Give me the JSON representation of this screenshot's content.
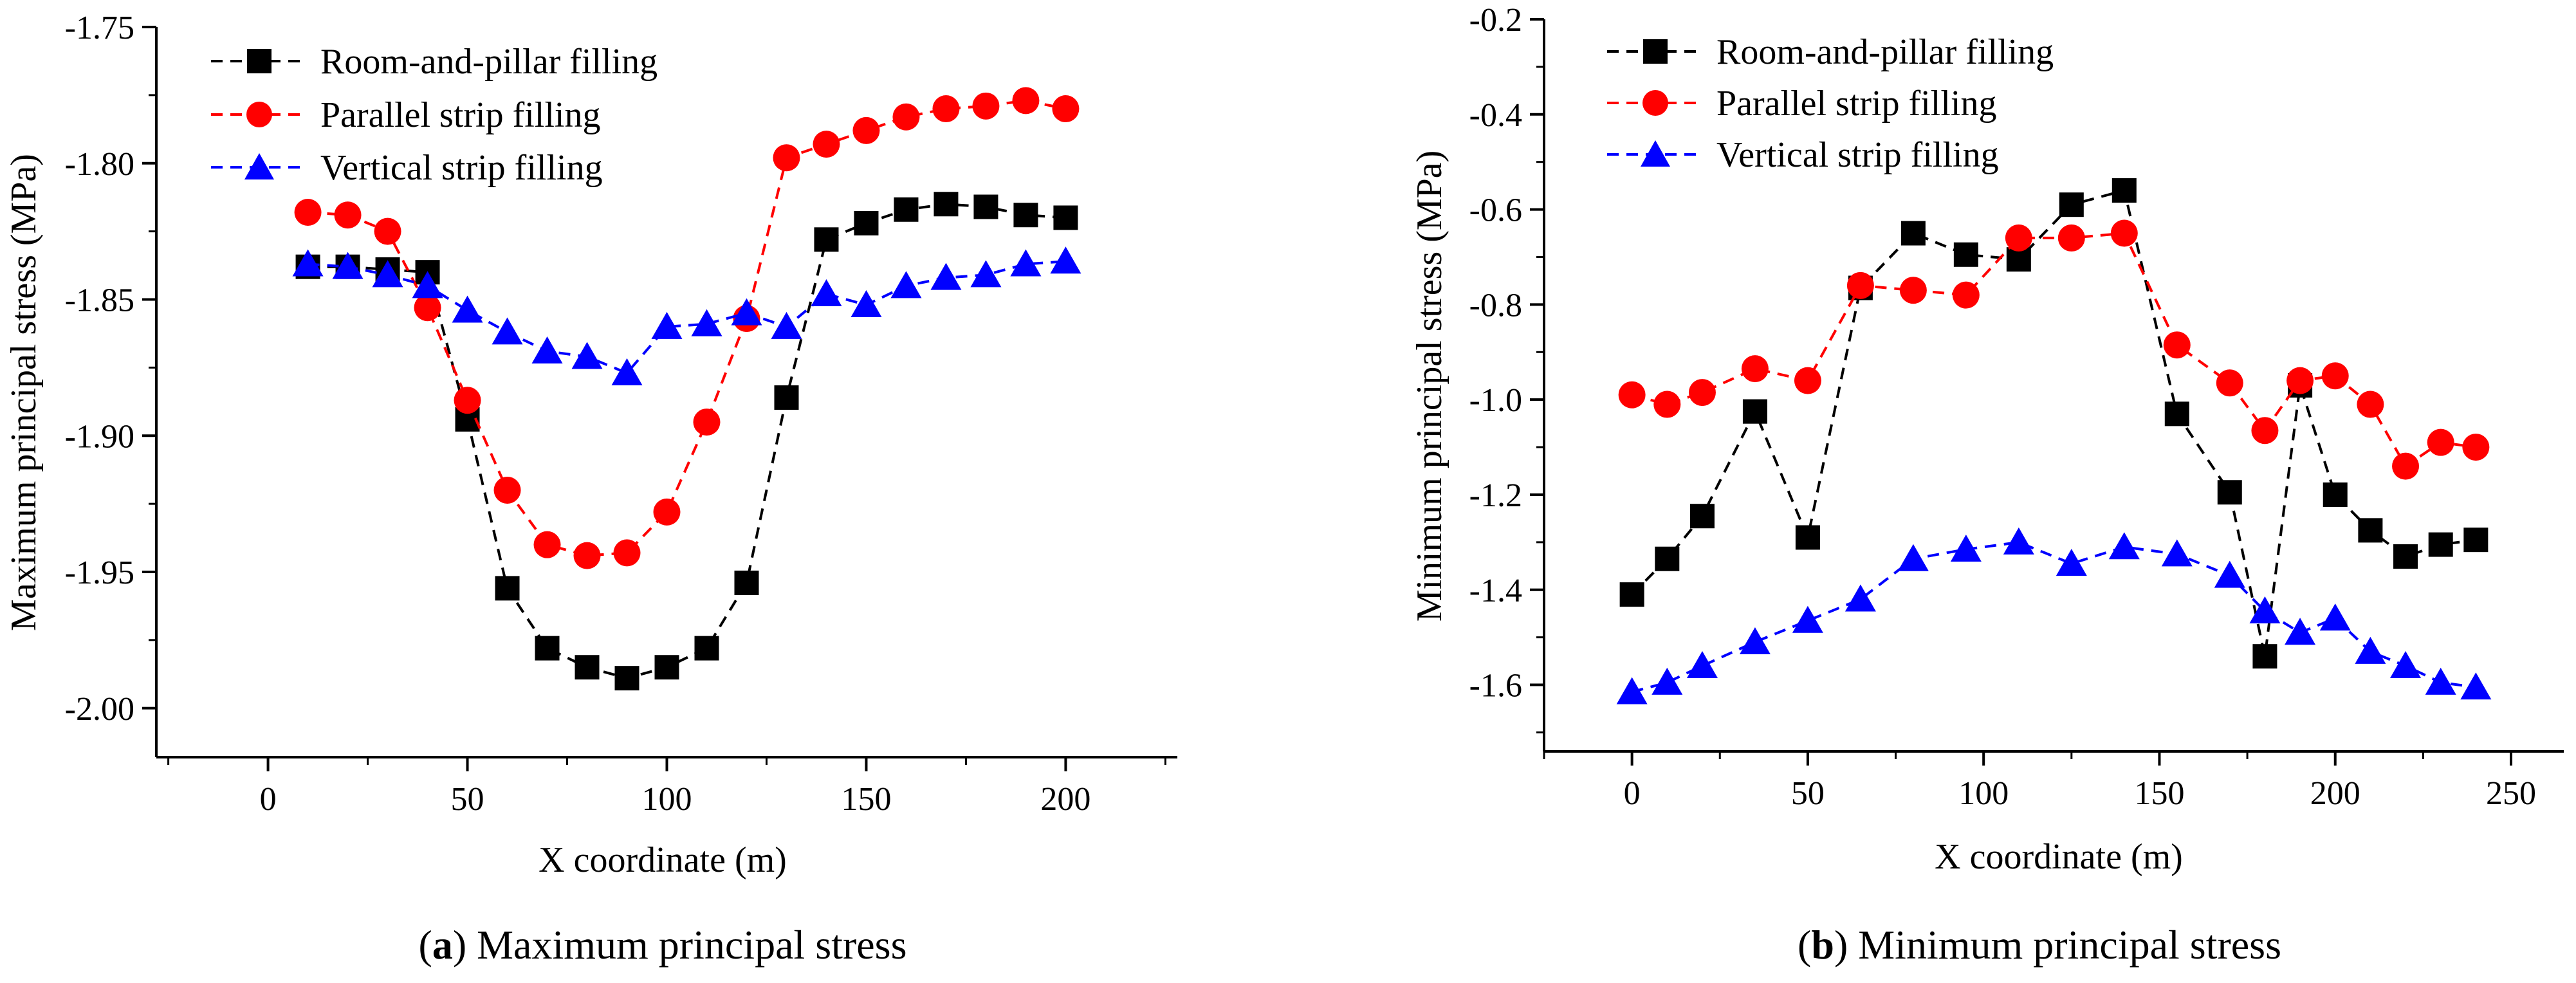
{
  "chart_data": [
    {
      "type": "line",
      "id": "a",
      "xlabel": "X coordinate (m)",
      "ylabel": "Maximum principal stress (MPa)",
      "xlim": [
        -28,
        228
      ],
      "ylim": [
        -2.018,
        -1.75
      ],
      "xticks": [
        0,
        50,
        100,
        150,
        200
      ],
      "xtick_labels": [
        "0",
        "50",
        "100",
        "150",
        "200"
      ],
      "yticks": [
        -2.0,
        -1.95,
        -1.9,
        -1.85,
        -1.8,
        -1.75
      ],
      "ytick_labels": [
        "-2.00",
        "-1.95",
        "-1.90",
        "-1.85",
        "-1.80",
        "-1.75"
      ],
      "caption": {
        "label": "a",
        "text": "Maximum principal stress"
      },
      "legend_position": "top-left",
      "series": [
        {
          "name": "Room-and-pillar filling",
          "color": "#000000",
          "marker": "square",
          "x": [
            10,
            20,
            30,
            40,
            50,
            60,
            70,
            80,
            90,
            100,
            110,
            120,
            130,
            140,
            150,
            160,
            170,
            180,
            190,
            200
          ],
          "values": [
            -1.838,
            -1.838,
            -1.839,
            -1.84,
            -1.894,
            -1.956,
            -1.978,
            -1.985,
            -1.989,
            -1.985,
            -1.978,
            -1.954,
            -1.886,
            -1.828,
            -1.822,
            -1.817,
            -1.815,
            -1.816,
            -1.819,
            -1.82
          ]
        },
        {
          "name": "Parallel strip filling",
          "color": "#ff0000",
          "marker": "circle",
          "x": [
            10,
            20,
            30,
            40,
            50,
            60,
            70,
            80,
            90,
            100,
            110,
            120,
            130,
            140,
            150,
            160,
            170,
            180,
            190,
            200
          ],
          "values": [
            -1.818,
            -1.819,
            -1.825,
            -1.853,
            -1.887,
            -1.92,
            -1.94,
            -1.944,
            -1.943,
            -1.928,
            -1.895,
            -1.857,
            -1.798,
            -1.793,
            -1.788,
            -1.783,
            -1.78,
            -1.779,
            -1.777,
            -1.78
          ]
        },
        {
          "name": "Vertical strip filling",
          "color": "#0000ff",
          "marker": "triangle",
          "x": [
            10,
            20,
            30,
            40,
            50,
            60,
            70,
            80,
            90,
            100,
            110,
            120,
            130,
            140,
            150,
            160,
            170,
            180,
            190,
            200
          ],
          "values": [
            -1.837,
            -1.838,
            -1.841,
            -1.845,
            -1.854,
            -1.862,
            -1.869,
            -1.871,
            -1.877,
            -1.86,
            -1.859,
            -1.855,
            -1.86,
            -1.848,
            -1.852,
            -1.845,
            -1.842,
            -1.841,
            -1.837,
            -1.836
          ]
        }
      ]
    },
    {
      "type": "line",
      "id": "b",
      "xlabel": "X coordinate (m)",
      "ylabel": "Minimum principal stress (MPa)",
      "xlim": [
        -25,
        265
      ],
      "ylim": [
        -1.74,
        -0.2
      ],
      "xticks": [
        0,
        50,
        100,
        150,
        200,
        250
      ],
      "xtick_labels": [
        "0",
        "50",
        "100",
        "150",
        "200",
        "250"
      ],
      "yticks": [
        -1.6,
        -1.4,
        -1.2,
        -1.0,
        -0.8,
        -0.6,
        -0.4,
        -0.2
      ],
      "ytick_labels": [
        "-1.6",
        "-1.4",
        "-1.2",
        "-1.0",
        "-0.8",
        "-0.6",
        "-0.4",
        "-0.2"
      ],
      "caption": {
        "label": "b",
        "text": "Minimum principal stress"
      },
      "legend_position": "top-left",
      "series": [
        {
          "name": "Room-and-pillar filling",
          "color": "#000000",
          "marker": "square",
          "x": [
            0,
            10,
            20,
            35,
            50,
            65,
            80,
            95,
            110,
            125,
            140,
            155,
            170,
            180,
            190,
            200,
            210,
            220,
            230,
            240
          ],
          "values": [
            -1.41,
            -1.335,
            -1.245,
            -1.025,
            -1.29,
            -0.765,
            -0.65,
            -0.695,
            -0.705,
            -0.59,
            -0.56,
            -1.03,
            -1.195,
            -1.54,
            -0.97,
            -1.2,
            -1.275,
            -1.33,
            -1.305,
            -1.295
          ]
        },
        {
          "name": "Parallel strip filling",
          "color": "#ff0000",
          "marker": "circle",
          "x": [
            0,
            10,
            20,
            35,
            50,
            65,
            80,
            95,
            110,
            125,
            140,
            155,
            170,
            180,
            190,
            200,
            210,
            220,
            230,
            240
          ],
          "values": [
            -0.99,
            -1.01,
            -0.985,
            -0.935,
            -0.96,
            -0.76,
            -0.77,
            -0.78,
            -0.66,
            -0.66,
            -0.65,
            -0.885,
            -0.965,
            -1.065,
            -0.96,
            -0.95,
            -1.01,
            -1.14,
            -1.09,
            -1.1
          ]
        },
        {
          "name": "Vertical strip filling",
          "color": "#0000ff",
          "marker": "triangle",
          "x": [
            0,
            10,
            20,
            35,
            50,
            65,
            80,
            95,
            110,
            125,
            140,
            155,
            170,
            180,
            190,
            200,
            210,
            220,
            230,
            240
          ],
          "values": [
            -1.615,
            -1.595,
            -1.56,
            -1.51,
            -1.465,
            -1.42,
            -1.335,
            -1.315,
            -1.3,
            -1.345,
            -1.31,
            -1.325,
            -1.37,
            -1.445,
            -1.49,
            -1.46,
            -1.53,
            -1.56,
            -1.595,
            -1.605
          ]
        }
      ]
    }
  ]
}
